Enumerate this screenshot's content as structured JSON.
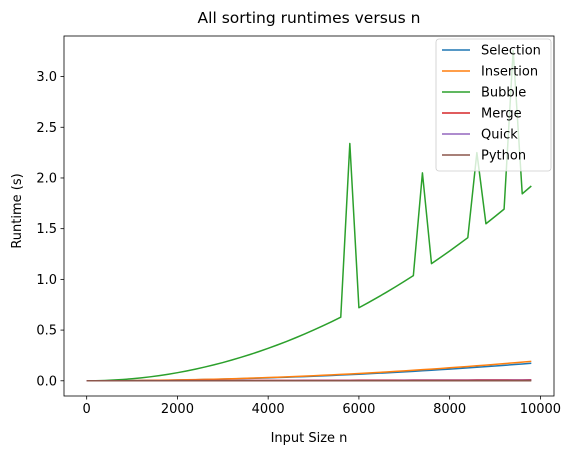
{
  "chart_data": {
    "type": "line",
    "title": "All sorting runtimes versus n",
    "xlabel": "Input Size n",
    "ylabel": "Runtime (s)",
    "xlim": [
      -500,
      10300
    ],
    "ylim": [
      -0.15,
      3.4
    ],
    "x_ticks": [
      0,
      2000,
      4000,
      6000,
      8000,
      10000
    ],
    "y_ticks": [
      0.0,
      0.5,
      1.0,
      1.5,
      2.0,
      2.5,
      3.0
    ],
    "x_tick_labels": [
      "0",
      "2000",
      "4000",
      "6000",
      "8000",
      "10000"
    ],
    "y_tick_labels": [
      "0.0",
      "0.5",
      "1.0",
      "1.5",
      "2.0",
      "2.5",
      "3.0"
    ],
    "grid": false,
    "legend_position": "top-right",
    "x": [
      0,
      200,
      400,
      600,
      800,
      1000,
      1200,
      1400,
      1600,
      1800,
      2000,
      2200,
      2400,
      2600,
      2800,
      3000,
      3200,
      3400,
      3600,
      3800,
      4000,
      4200,
      4400,
      4600,
      4800,
      5000,
      5200,
      5400,
      5600,
      5800,
      6000,
      6200,
      6400,
      6600,
      6800,
      7000,
      7200,
      7400,
      7600,
      7800,
      8000,
      8200,
      8400,
      8600,
      8800,
      9000,
      9200,
      9400,
      9600,
      9800
    ],
    "series": [
      {
        "name": "Selection",
        "color": "#1f77b4",
        "values": [
          0,
          0.0001,
          0.0003,
          0.0007,
          0.0012,
          0.0018,
          0.0026,
          0.0035,
          0.0046,
          0.0058,
          0.0072,
          0.0087,
          0.0103,
          0.0121,
          0.0141,
          0.0162,
          0.0184,
          0.0208,
          0.0233,
          0.026,
          0.0288,
          0.0318,
          0.0349,
          0.0381,
          0.0415,
          0.045,
          0.0487,
          0.0525,
          0.0565,
          0.0606,
          0.0648,
          0.0692,
          0.0737,
          0.0784,
          0.0832,
          0.0882,
          0.0933,
          0.0986,
          0.104,
          0.1095,
          0.1152,
          0.121,
          0.127,
          0.1331,
          0.1394,
          0.1458,
          0.1523,
          0.159,
          0.1659,
          0.1729
        ]
      },
      {
        "name": "Insertion",
        "color": "#ff7f0e",
        "values": [
          0,
          0.0001,
          0.0004,
          0.0008,
          0.0014,
          0.002,
          0.0029,
          0.004,
          0.0052,
          0.0065,
          0.008,
          0.0097,
          0.0115,
          0.0135,
          0.0157,
          0.018,
          0.0205,
          0.0231,
          0.0259,
          0.0289,
          0.032,
          0.0353,
          0.0387,
          0.0423,
          0.0461,
          0.05,
          0.0541,
          0.0583,
          0.0627,
          0.0673,
          0.072,
          0.0769,
          0.0819,
          0.0871,
          0.0925,
          0.098,
          0.1037,
          0.1095,
          0.1155,
          0.1217,
          0.128,
          0.1345,
          0.1411,
          0.1479,
          0.1549,
          0.162,
          0.1693,
          0.1767,
          0.1843,
          0.1921
        ]
      },
      {
        "name": "Bubble",
        "color": "#2ca02c",
        "values": [
          0,
          0.0008,
          0.0032,
          0.0072,
          0.0128,
          0.02,
          0.0288,
          0.0392,
          0.0512,
          0.0648,
          0.08,
          0.0968,
          0.1152,
          0.1352,
          0.1568,
          0.18,
          0.2048,
          0.2312,
          0.2592,
          0.2888,
          0.32,
          0.3528,
          0.3872,
          0.4232,
          0.4608,
          0.5,
          0.5408,
          0.5832,
          0.6272,
          2.34,
          0.72,
          0.7688,
          0.8192,
          0.8712,
          0.9248,
          0.98,
          1.0368,
          2.05,
          1.1552,
          1.2168,
          1.28,
          1.3448,
          1.4112,
          2.25,
          1.5488,
          1.62,
          1.6928,
          3.26,
          1.8432,
          1.9208
        ]
      },
      {
        "name": "Merge",
        "color": "#d62728",
        "values": [
          0,
          0.0002,
          0.0004,
          0.0006,
          0.0008,
          0.001,
          0.0012,
          0.0014,
          0.0016,
          0.0018,
          0.002,
          0.0022,
          0.0024,
          0.0026,
          0.0028,
          0.003,
          0.0032,
          0.0034,
          0.0036,
          0.0038,
          0.004,
          0.0042,
          0.0044,
          0.0046,
          0.0048,
          0.005,
          0.0052,
          0.0054,
          0.0056,
          0.0058,
          0.006,
          0.0062,
          0.0064,
          0.0066,
          0.0068,
          0.007,
          0.0072,
          0.0074,
          0.0076,
          0.0078,
          0.008,
          0.0082,
          0.0084,
          0.0086,
          0.0088,
          0.009,
          0.0092,
          0.0094,
          0.0096,
          0.0098
        ]
      },
      {
        "name": "Quick",
        "color": "#9467bd",
        "values": [
          0,
          0.0001,
          0.0002,
          0.0003,
          0.0004,
          0.0005,
          0.0006,
          0.0007,
          0.0008,
          0.0009,
          0.001,
          0.0011,
          0.0012,
          0.0013,
          0.0014,
          0.0015,
          0.0016,
          0.0017,
          0.0018,
          0.0019,
          0.002,
          0.0021,
          0.0022,
          0.0023,
          0.0024,
          0.0025,
          0.0026,
          0.0027,
          0.0028,
          0.0029,
          0.003,
          0.0031,
          0.0032,
          0.0033,
          0.0034,
          0.0035,
          0.0036,
          0.0037,
          0.0038,
          0.0039,
          0.004,
          0.0041,
          0.0042,
          0.0043,
          0.0044,
          0.0045,
          0.0046,
          0.0047,
          0.0048,
          0.0049
        ]
      },
      {
        "name": "Python",
        "color": "#8c564b",
        "values": [
          0,
          0,
          0,
          0,
          0,
          0,
          0,
          0,
          0,
          0,
          0,
          0,
          0,
          0,
          0,
          0,
          0,
          0,
          0,
          0,
          0,
          0,
          0,
          0,
          0,
          0,
          0,
          0,
          0,
          0,
          0,
          0,
          0,
          0,
          0,
          0,
          0,
          0,
          0,
          0,
          0,
          0,
          0,
          0,
          0,
          0,
          0,
          0,
          0,
          0
        ]
      }
    ]
  }
}
